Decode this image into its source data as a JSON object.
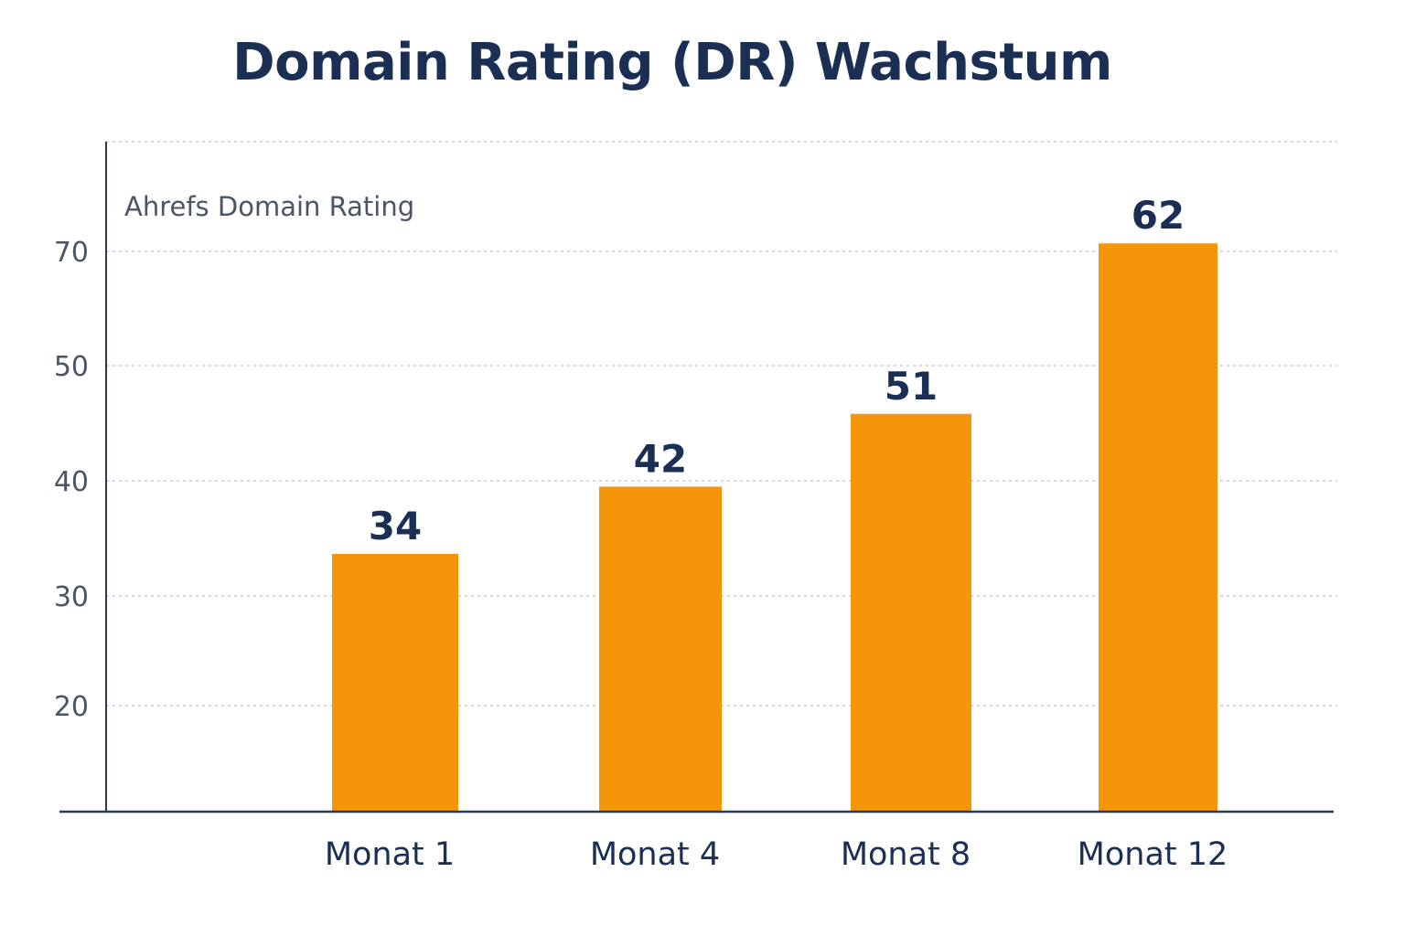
{
  "chart_data": {
    "type": "bar",
    "title": "Domain Rating (DR) Wachstum",
    "ylabel": "Ahrefs Domain Rating",
    "xlabel": "",
    "categories": [
      "Monat 1",
      "Monat 4",
      "Monat 8",
      "Monat 12"
    ],
    "values": [
      34,
      42,
      51,
      62
    ],
    "yticks": [
      "20",
      "30",
      "40",
      "50",
      "70"
    ],
    "grid": true,
    "legend": "none",
    "colors": {
      "bar": "#f5950a",
      "text": "#1b2f55",
      "grid": "#b9c0cc",
      "axis": "#2c3a55"
    }
  }
}
